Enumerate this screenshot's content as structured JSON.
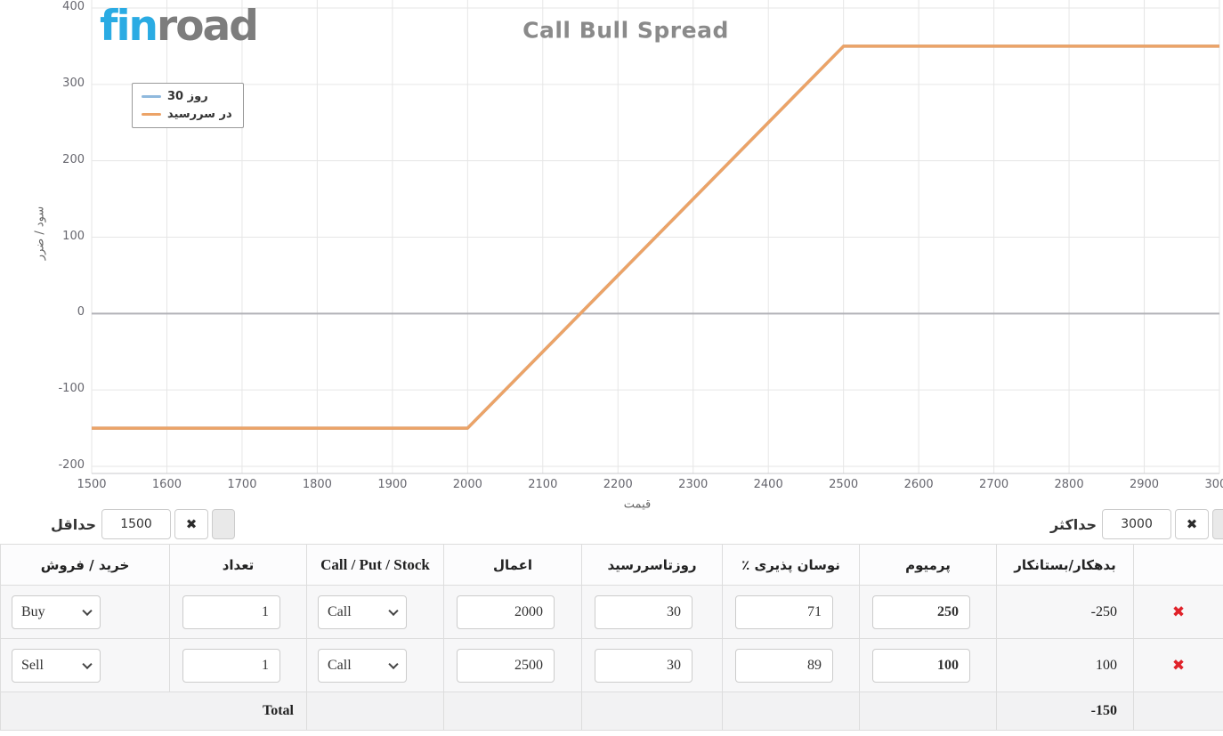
{
  "logo": {
    "fin": "fin",
    "road": "road"
  },
  "chart_data": {
    "type": "line",
    "title": "Call Bull Spread",
    "xlabel": "قیمت",
    "ylabel": "سود / ضرر",
    "xlim": [
      1500,
      3000
    ],
    "ylim": [
      -200,
      400
    ],
    "x_tick_step": 100,
    "y_tick_step": 100,
    "grid": true,
    "zero_line": true,
    "legend_position": "top-left",
    "series": [
      {
        "name": "30 روز",
        "color": "#8fb9dd",
        "points": [
          [
            1500,
            -150
          ],
          [
            2000,
            -150
          ],
          [
            2500,
            350
          ],
          [
            3000,
            350
          ]
        ]
      },
      {
        "name": "در سررسید",
        "color": "#eca367",
        "points": [
          [
            1500,
            -150
          ],
          [
            2000,
            -150
          ],
          [
            2500,
            350
          ],
          [
            3000,
            350
          ]
        ]
      }
    ]
  },
  "range_controls": {
    "min": {
      "label": "حداقل",
      "value": "1500"
    },
    "max": {
      "label": "حداکثر",
      "value": "3000"
    }
  },
  "icons": {
    "clear": "✖",
    "delete": "✖"
  },
  "colors": {
    "logo_blue": "#2aabe3",
    "logo_gray": "#7d7d7d",
    "series_30_days": "#8fb9dd",
    "series_maturity": "#eca367",
    "zero_line": "#b1b1b6",
    "gridline": "#e6e6e6",
    "delete_red": "#e0222a",
    "title_gray": "#8a8a8a"
  },
  "table": {
    "headers": [
      "خرید / فروش",
      "تعداد",
      "Call / Put / Stock",
      "اعمال",
      "روزتاسررسید",
      "نوسان پذیری ٪",
      "پرمیوم",
      "بدهکار/بستانکار",
      ""
    ],
    "rows": [
      {
        "side": "Buy",
        "qty": "1",
        "type": "Call",
        "strike": "2000",
        "days": "30",
        "vol": "71",
        "premium": "250",
        "debit_credit": "-250"
      },
      {
        "side": "Sell",
        "qty": "1",
        "type": "Call",
        "strike": "2500",
        "days": "30",
        "vol": "89",
        "premium": "100",
        "debit_credit": "100"
      }
    ],
    "total": {
      "label": "Total",
      "value": "-150"
    }
  }
}
